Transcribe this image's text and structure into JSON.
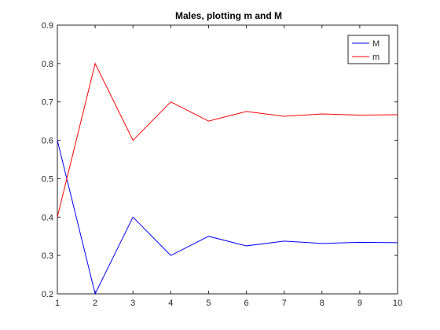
{
  "chart_data": {
    "type": "line",
    "title": "Males, plotting m and M",
    "xlabel": "",
    "ylabel": "",
    "x": [
      1,
      2,
      3,
      4,
      5,
      6,
      7,
      8,
      9,
      10
    ],
    "xlim": [
      1,
      10
    ],
    "ylim": [
      0.2,
      0.9
    ],
    "xticks": [
      "1",
      "2",
      "3",
      "4",
      "5",
      "6",
      "7",
      "8",
      "9",
      "10"
    ],
    "yticks": [
      "0.2",
      "0.3",
      "0.4",
      "0.5",
      "0.6",
      "0.7",
      "0.8",
      "0.9"
    ],
    "grid": false,
    "legend_position": "top-right",
    "series": [
      {
        "name": "M",
        "color": "#0000ff",
        "values": [
          0.6,
          0.2,
          0.4,
          0.3,
          0.35,
          0.325,
          0.3375,
          0.3313,
          0.3344,
          0.3333
        ]
      },
      {
        "name": "m",
        "color": "#ff0000",
        "values": [
          0.4,
          0.8,
          0.6,
          0.7,
          0.65,
          0.675,
          0.6625,
          0.6687,
          0.6656,
          0.6667
        ]
      }
    ]
  }
}
